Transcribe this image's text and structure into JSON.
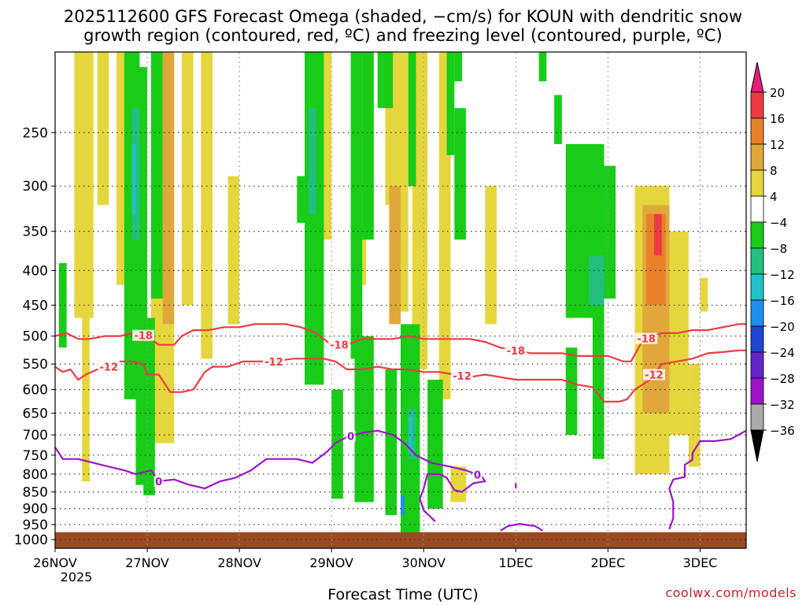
{
  "header": {
    "title_line1": "2025112600 GFS Forecast Omega (shaded, −cm/s) for KOUN with dendritic snow",
    "title_line2": "growth region (contoured, red, ºC) and freezing level (contoured, purple, ºC)"
  },
  "footer": {
    "xlabel": "Forecast Time (UTC)",
    "credit": "coolwx.com/models"
  },
  "chart_data": {
    "type": "heatmap",
    "title": "2025112600 GFS Forecast Omega (shaded, −cm/s) for KOUN with dendritic snow growth region (contoured, red, ºC) and freezing level (contoured, purple, ºC)",
    "xlabel": "Forecast Time (UTC)",
    "ylabel": "",
    "y_axis": {
      "unit": "hPa",
      "log_scale": true,
      "range": [
        1030,
        190
      ],
      "ticks": [
        250,
        300,
        350,
        400,
        450,
        500,
        550,
        600,
        650,
        700,
        750,
        800,
        850,
        900,
        950,
        1000
      ]
    },
    "x_axis": {
      "range_hours": [
        0,
        180
      ],
      "ticks": [
        {
          "label": "26NOV",
          "sublabel": "2025",
          "hour": 0
        },
        {
          "label": "27NOV",
          "hour": 24
        },
        {
          "label": "28NOV",
          "hour": 48
        },
        {
          "label": "29NOV",
          "hour": 72
        },
        {
          "label": "30NOV",
          "hour": 96
        },
        {
          "label": "1DEC",
          "hour": 120
        },
        {
          "label": "2DEC",
          "hour": 144
        },
        {
          "label": "3DEC",
          "hour": 168
        }
      ]
    },
    "grid": true,
    "colorbar": {
      "ticks": [
        "20",
        "16",
        "12",
        "8",
        "4",
        "−4",
        "−8",
        "−12",
        "−16",
        "−20",
        "−24",
        "−28",
        "−32",
        "−36"
      ],
      "bands": [
        {
          "from": 16,
          "to": 20,
          "color": "#ee3a44"
        },
        {
          "from": 12,
          "to": 16,
          "color": "#e8802a"
        },
        {
          "from": 8,
          "to": 12,
          "color": "#e0a83a"
        },
        {
          "from": 4,
          "to": 8,
          "color": "#e6d63e"
        },
        {
          "from": -4,
          "to": 4,
          "color": "#ffffff"
        },
        {
          "from": -8,
          "to": -4,
          "color": "#18cc18"
        },
        {
          "from": -12,
          "to": -8,
          "color": "#22bf80"
        },
        {
          "from": -16,
          "to": -12,
          "color": "#22c0c8"
        },
        {
          "from": -20,
          "to": -16,
          "color": "#1e8fee"
        },
        {
          "from": -24,
          "to": -20,
          "color": "#1e46d2"
        },
        {
          "from": -28,
          "to": -24,
          "color": "#6424c8"
        },
        {
          "from": -32,
          "to": -28,
          "color": "#9c14c8"
        },
        {
          "from": -36,
          "to": -32,
          "color": "#aaaaaa"
        }
      ],
      "overflow_color": "#e0207a",
      "underflow_color": "#000000"
    },
    "contours": [
      {
        "label": "-18",
        "color": "#ee3a44",
        "points": [
          [
            0,
            500
          ],
          [
            3,
            495
          ],
          [
            6,
            505
          ],
          [
            9,
            505
          ],
          [
            13,
            500
          ],
          [
            17,
            500
          ],
          [
            20,
            495
          ],
          [
            24,
            500
          ],
          [
            27,
            515
          ],
          [
            31,
            515
          ],
          [
            33,
            500
          ],
          [
            36,
            490
          ],
          [
            40,
            490
          ],
          [
            44,
            485
          ],
          [
            48,
            485
          ],
          [
            52,
            480
          ],
          [
            56,
            480
          ],
          [
            60,
            480
          ],
          [
            64,
            485
          ],
          [
            68,
            495
          ],
          [
            72,
            515
          ],
          [
            76,
            515
          ],
          [
            80,
            505
          ],
          [
            84,
            505
          ],
          [
            88,
            505
          ],
          [
            92,
            500
          ],
          [
            96,
            505
          ],
          [
            100,
            505
          ],
          [
            104,
            505
          ],
          [
            108,
            505
          ],
          [
            112,
            510
          ],
          [
            116,
            520
          ],
          [
            120,
            525
          ],
          [
            124,
            530
          ],
          [
            128,
            530
          ],
          [
            132,
            530
          ],
          [
            136,
            535
          ],
          [
            140,
            535
          ],
          [
            144,
            535
          ],
          [
            148,
            545
          ],
          [
            150,
            545
          ],
          [
            152,
            520
          ],
          [
            153,
            508
          ],
          [
            155,
            500
          ],
          [
            158,
            495
          ],
          [
            162,
            495
          ],
          [
            166,
            490
          ],
          [
            170,
            490
          ],
          [
            174,
            485
          ],
          [
            178,
            480
          ],
          [
            180,
            480
          ]
        ],
        "labels_at_hours": [
          23,
          74,
          120,
          154
        ]
      },
      {
        "label": "-12",
        "color": "#ee3a44",
        "points": [
          [
            0,
            555
          ],
          [
            2,
            565
          ],
          [
            4,
            560
          ],
          [
            6,
            580
          ],
          [
            8,
            570
          ],
          [
            11,
            560
          ],
          [
            14,
            555
          ],
          [
            17,
            545
          ],
          [
            20,
            545
          ],
          [
            23,
            550
          ],
          [
            24,
            570
          ],
          [
            27,
            570
          ],
          [
            30,
            605
          ],
          [
            33,
            605
          ],
          [
            36,
            600
          ],
          [
            39,
            565
          ],
          [
            41,
            555
          ],
          [
            45,
            555
          ],
          [
            49,
            545
          ],
          [
            53,
            545
          ],
          [
            57,
            545
          ],
          [
            62,
            540
          ],
          [
            66,
            540
          ],
          [
            70,
            540
          ],
          [
            73,
            545
          ],
          [
            76,
            560
          ],
          [
            80,
            560
          ],
          [
            84,
            555
          ],
          [
            88,
            560
          ],
          [
            92,
            560
          ],
          [
            96,
            565
          ],
          [
            100,
            565
          ],
          [
            104,
            570
          ],
          [
            108,
            575
          ],
          [
            112,
            570
          ],
          [
            116,
            575
          ],
          [
            120,
            580
          ],
          [
            124,
            580
          ],
          [
            128,
            580
          ],
          [
            132,
            580
          ],
          [
            136,
            590
          ],
          [
            140,
            595
          ],
          [
            143,
            625
          ],
          [
            147,
            625
          ],
          [
            149,
            620
          ],
          [
            151,
            600
          ],
          [
            153,
            590
          ],
          [
            155,
            580
          ],
          [
            158,
            550
          ],
          [
            162,
            545
          ],
          [
            166,
            540
          ],
          [
            170,
            530
          ],
          [
            174,
            528
          ],
          [
            178,
            525
          ],
          [
            180,
            525
          ]
        ],
        "labels_at_hours": [
          14,
          57,
          106,
          156
        ]
      },
      {
        "label": "0",
        "color": "#9c14c8",
        "points": [
          [
            0,
            730
          ],
          [
            2,
            760
          ],
          [
            6,
            760
          ],
          [
            10,
            770
          ],
          [
            14,
            780
          ],
          [
            18,
            790
          ],
          [
            21,
            800
          ],
          [
            23,
            795
          ],
          [
            25,
            790
          ],
          [
            27,
            820
          ],
          [
            31,
            815
          ],
          [
            35,
            830
          ],
          [
            39,
            840
          ],
          [
            43,
            820
          ],
          [
            47,
            810
          ],
          [
            51,
            790
          ],
          [
            55,
            760
          ],
          [
            59,
            760
          ],
          [
            63,
            760
          ],
          [
            67,
            770
          ],
          [
            71,
            740
          ],
          [
            73,
            720
          ],
          [
            76,
            705
          ],
          [
            80,
            695
          ],
          [
            84,
            690
          ],
          [
            88,
            700
          ],
          [
            91,
            720
          ],
          [
            94,
            750
          ],
          [
            98,
            770
          ],
          [
            103,
            780
          ],
          [
            107,
            790
          ],
          [
            111,
            805
          ],
          [
            112,
            820
          ],
          [
            109,
            825
          ],
          [
            106,
            850
          ],
          [
            104,
            845
          ],
          [
            102,
            810
          ],
          [
            100,
            800
          ],
          [
            97,
            800
          ],
          [
            96,
            840
          ],
          [
            95,
            870
          ],
          [
            96,
            905
          ],
          [
            99,
            940
          ]
        ],
        "labels_at_hours": [
          27,
          77,
          110,
          166
        ]
      },
      {
        "label": "0",
        "color": "#9c14c8",
        "points": [
          [
            116,
            970
          ],
          [
            118,
            955
          ],
          [
            121,
            948
          ],
          [
            125,
            955
          ],
          [
            127,
            970
          ]
        ]
      },
      {
        "label": "0",
        "color": "#9c14c8",
        "points": [
          [
            160,
            965
          ],
          [
            161,
            930
          ],
          [
            161,
            880
          ],
          [
            160,
            840
          ],
          [
            161,
            815
          ],
          [
            164,
            808
          ],
          [
            164,
            775
          ],
          [
            166,
            762
          ],
          [
            166,
            745
          ],
          [
            168,
            715
          ],
          [
            172,
            715
          ],
          [
            176,
            710
          ],
          [
            178,
            700
          ],
          [
            180,
            690
          ]
        ]
      },
      {
        "label": "0",
        "color": "#9c14c8",
        "points": [
          [
            120,
            825
          ],
          [
            120,
            840
          ]
        ]
      }
    ],
    "shaded_regions": [
      {
        "level": 4,
        "color": "#e6d63e",
        "rects": [
          [
            5,
            10,
            190,
            470
          ],
          [
            7,
            9,
            290,
            820
          ],
          [
            11,
            14,
            190,
            320
          ],
          [
            16,
            19,
            190,
            420
          ],
          [
            20,
            22,
            190,
            560
          ],
          [
            25,
            31,
            190,
            720
          ],
          [
            33,
            36,
            190,
            450
          ],
          [
            38,
            41,
            190,
            540
          ],
          [
            45,
            48,
            290,
            480
          ],
          [
            69,
            72,
            190,
            360
          ],
          [
            78,
            81,
            190,
            420
          ],
          [
            86,
            89,
            190,
            320
          ],
          [
            88,
            92,
            190,
            460
          ],
          [
            93,
            97,
            190,
            560
          ],
          [
            100,
            103,
            190,
            620
          ],
          [
            103,
            107,
            780,
            880
          ],
          [
            112,
            115,
            300,
            480
          ],
          [
            151,
            160,
            300,
            800
          ],
          [
            158,
            165,
            350,
            700
          ],
          [
            165,
            168,
            550,
            780
          ],
          [
            168,
            170,
            410,
            460
          ]
        ]
      },
      {
        "level": 8,
        "color": "#e0a83a",
        "rects": [
          [
            28,
            31,
            190,
            480
          ],
          [
            87,
            90,
            300,
            480
          ],
          [
            153,
            160,
            320,
            650
          ]
        ]
      },
      {
        "level": 12,
        "color": "#e8802a",
        "rects": [
          [
            154,
            159,
            330,
            450
          ]
        ]
      },
      {
        "level": 16,
        "color": "#ee3a44",
        "rects": [
          [
            156,
            158,
            330,
            380
          ]
        ]
      },
      {
        "level": -4,
        "color": "#18cc18",
        "rects": [
          [
            1,
            3,
            390,
            520
          ],
          [
            18,
            22,
            190,
            620
          ],
          [
            21,
            24,
            200,
            830
          ],
          [
            23,
            26,
            470,
            860
          ],
          [
            25,
            28,
            190,
            440
          ],
          [
            63,
            66,
            290,
            340
          ],
          [
            65,
            70,
            190,
            590
          ],
          [
            72,
            75,
            600,
            870
          ],
          [
            77,
            80,
            190,
            540
          ],
          [
            78,
            83,
            500,
            880
          ],
          [
            80,
            83,
            190,
            360
          ],
          [
            84,
            88,
            190,
            230
          ],
          [
            86,
            89,
            560,
            920
          ],
          [
            90,
            95,
            480,
            980
          ],
          [
            92,
            94,
            190,
            300
          ],
          [
            97,
            101,
            580,
            900
          ],
          [
            102,
            104,
            190,
            270
          ],
          [
            104,
            107,
            230,
            360
          ],
          [
            104,
            106,
            180,
            210
          ],
          [
            126,
            128,
            190,
            210
          ],
          [
            130,
            132,
            220,
            260
          ],
          [
            133,
            143,
            260,
            470
          ],
          [
            137,
            146,
            280,
            440
          ],
          [
            133,
            136,
            520,
            700
          ],
          [
            140,
            143,
            440,
            760
          ]
        ]
      },
      {
        "level": -8,
        "color": "#22bf80",
        "rects": [
          [
            20,
            22,
            230,
            360
          ],
          [
            66,
            68,
            230,
            330
          ],
          [
            92,
            94,
            640,
            760
          ],
          [
            139,
            143,
            380,
            450
          ]
        ]
      },
      {
        "level": -12,
        "color": "#22c0c8",
        "rects": [
          [
            20,
            21,
            260,
            330
          ],
          [
            92,
            93,
            660,
            740
          ]
        ]
      },
      {
        "level": -16,
        "color": "#1e8fee",
        "rects": [
          [
            90,
            91,
            860,
            920
          ]
        ]
      }
    ],
    "surface_fill": {
      "color": "#9a4a22",
      "from_hpa": 975
    }
  }
}
